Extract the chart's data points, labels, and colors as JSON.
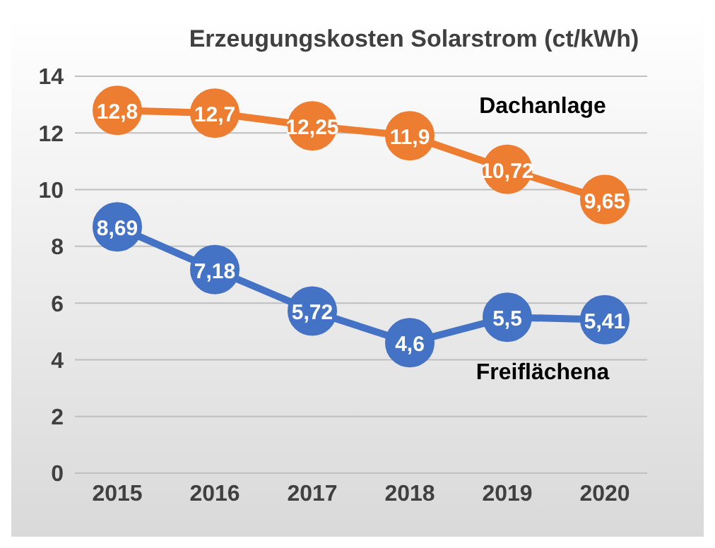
{
  "chart_data": {
    "type": "line",
    "title": "Erzeugungskosten Solarstrom (ct/kWh)",
    "categories": [
      "2015",
      "2016",
      "2017",
      "2018",
      "2019",
      "2020"
    ],
    "series": [
      {
        "name": "Dachanlage",
        "color": "#ed7d31",
        "values": [
          12.8,
          12.7,
          12.25,
          11.9,
          10.72,
          9.65
        ],
        "value_labels": [
          "12,8",
          "12,7",
          "12,25",
          "11,9",
          "10,72",
          "9,65"
        ]
      },
      {
        "name": "Freiflächena",
        "color": "#4472c4",
        "values": [
          8.69,
          7.18,
          5.72,
          4.6,
          5.5,
          5.41
        ],
        "value_labels": [
          "8,69",
          "7,18",
          "5,72",
          "4,6",
          "5,5",
          "5,41"
        ]
      }
    ],
    "ylim": [
      0,
      14
    ],
    "yticks": [
      0,
      2,
      4,
      6,
      8,
      10,
      12,
      14
    ],
    "grid": "y",
    "marker": "circle",
    "line_style": "solid"
  }
}
